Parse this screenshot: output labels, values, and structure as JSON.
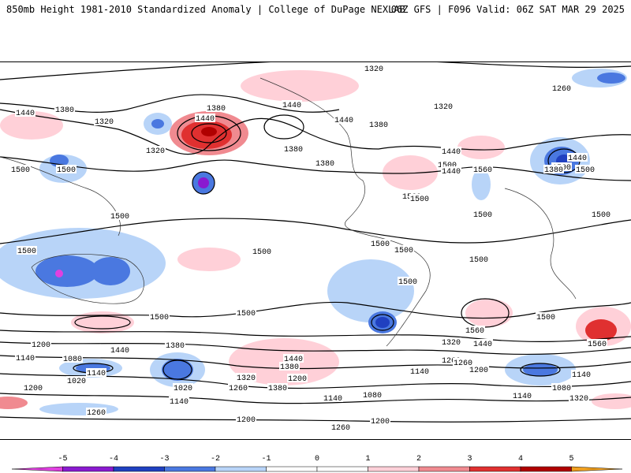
{
  "header": {
    "left": "850mb Height 1981-2010 Standardized Anomaly | College of DuPage NEXLAB",
    "right": "06Z GFS | F096 Valid: 06Z SAT MAR 29 2025"
  },
  "colorbar": {
    "ticks": [
      "-5",
      "-4",
      "-3",
      "-2",
      "-1",
      "0",
      "1",
      "2",
      "3",
      "4",
      "5"
    ],
    "colors": [
      "#e040e0",
      "#8a1ad0",
      "#2040c0",
      "#4a78e0",
      "#b8d4f8",
      "#ffffff",
      "#ffd0d8",
      "#f08a90",
      "#e03030",
      "#b00000",
      "#f0a020"
    ]
  },
  "contour_labels": [
    "1320",
    "1440",
    "1380",
    "1320",
    "1260",
    "1440",
    "1380",
    "1320",
    "1440",
    "1380",
    "1500",
    "1500",
    "1440",
    "1380",
    "1380",
    "1320",
    "1440",
    "1500",
    "1440",
    "1500",
    "1560",
    "1500",
    "1560",
    "1500",
    "1380",
    "1440",
    "1500",
    "1500",
    "1500",
    "1500",
    "1500",
    "1500",
    "1500",
    "1500",
    "1500",
    "1500",
    "1500",
    "1560",
    "1500",
    "1560",
    "1440",
    "1380",
    "1440",
    "1320",
    "1260",
    "1200",
    "1140",
    "1080",
    "1020",
    "1020",
    "1140",
    "1200",
    "1140",
    "1380",
    "1440",
    "1380",
    "1320",
    "1260",
    "1200",
    "1260",
    "1140",
    "1200",
    "1140",
    "1080",
    "1140",
    "1080",
    "1320",
    "1140",
    "1260",
    "1200",
    "1200",
    "1260"
  ],
  "colors": {
    "positive_light": "#ffd0d8",
    "positive_mid": "#f08a90",
    "positive_strong": "#e03030",
    "negative_light": "#b8d4f8",
    "negative_mid": "#4a78e0",
    "negative_strong": "#2040c0",
    "negative_extreme": "#8a1ad0"
  }
}
